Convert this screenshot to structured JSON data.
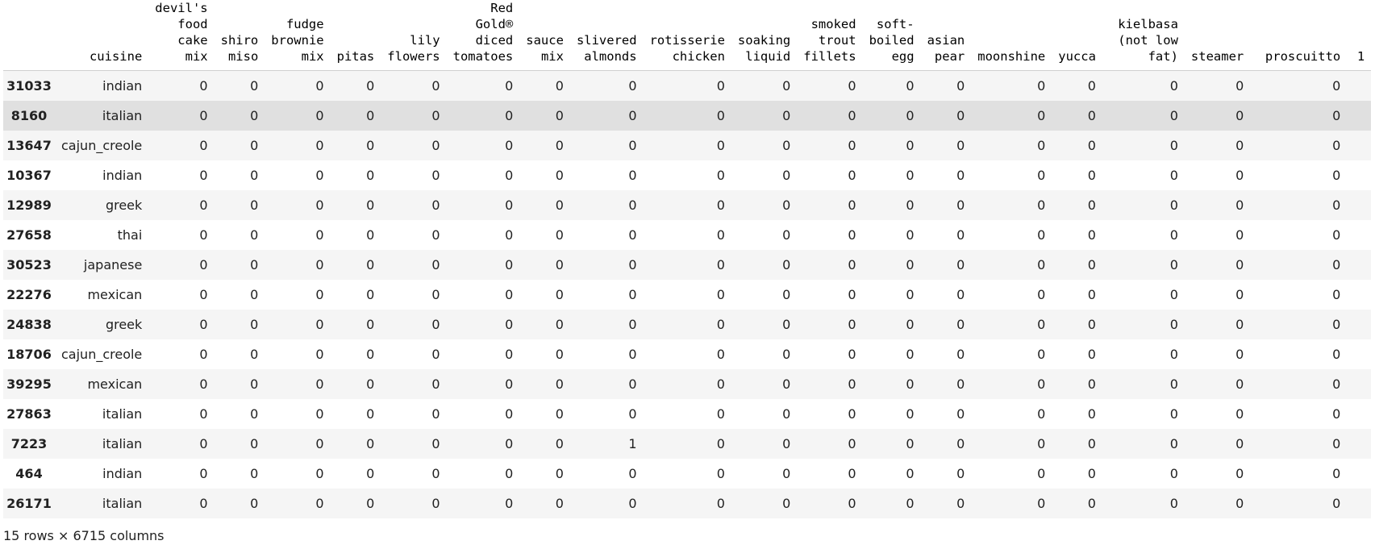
{
  "table": {
    "columns": [
      "cuisine",
      "devil's\nfood\ncake\nmix",
      "shiro\nmiso",
      "fudge\nbrownie\nmix",
      "pitas",
      "lily\nflowers",
      "Red\nGold®\ndiced\ntomatoes",
      "sauce\nmix",
      "slivered\nalmonds",
      "rotisserie\nchicken",
      "soaking\nliquid",
      "smoked\ntrout\nfillets",
      "soft-\nboiled\negg",
      "asian\npear",
      "moonshine",
      "yucca",
      "kielbasa\n(not low\nfat)",
      "steamer",
      "proscuitto",
      "1"
    ],
    "rows": [
      {
        "index": "31033",
        "cells": [
          "indian",
          "0",
          "0",
          "0",
          "0",
          "0",
          "0",
          "0",
          "0",
          "0",
          "0",
          "0",
          "0",
          "0",
          "0",
          "0",
          "0",
          "0",
          "0",
          ""
        ]
      },
      {
        "index": "8160",
        "cells": [
          "italian",
          "0",
          "0",
          "0",
          "0",
          "0",
          "0",
          "0",
          "0",
          "0",
          "0",
          "0",
          "0",
          "0",
          "0",
          "0",
          "0",
          "0",
          "0",
          ""
        ]
      },
      {
        "index": "13647",
        "cells": [
          "cajun_creole",
          "0",
          "0",
          "0",
          "0",
          "0",
          "0",
          "0",
          "0",
          "0",
          "0",
          "0",
          "0",
          "0",
          "0",
          "0",
          "0",
          "0",
          "0",
          ""
        ]
      },
      {
        "index": "10367",
        "cells": [
          "indian",
          "0",
          "0",
          "0",
          "0",
          "0",
          "0",
          "0",
          "0",
          "0",
          "0",
          "0",
          "0",
          "0",
          "0",
          "0",
          "0",
          "0",
          "0",
          ""
        ]
      },
      {
        "index": "12989",
        "cells": [
          "greek",
          "0",
          "0",
          "0",
          "0",
          "0",
          "0",
          "0",
          "0",
          "0",
          "0",
          "0",
          "0",
          "0",
          "0",
          "0",
          "0",
          "0",
          "0",
          ""
        ]
      },
      {
        "index": "27658",
        "cells": [
          "thai",
          "0",
          "0",
          "0",
          "0",
          "0",
          "0",
          "0",
          "0",
          "0",
          "0",
          "0",
          "0",
          "0",
          "0",
          "0",
          "0",
          "0",
          "0",
          ""
        ]
      },
      {
        "index": "30523",
        "cells": [
          "japanese",
          "0",
          "0",
          "0",
          "0",
          "0",
          "0",
          "0",
          "0",
          "0",
          "0",
          "0",
          "0",
          "0",
          "0",
          "0",
          "0",
          "0",
          "0",
          ""
        ]
      },
      {
        "index": "22276",
        "cells": [
          "mexican",
          "0",
          "0",
          "0",
          "0",
          "0",
          "0",
          "0",
          "0",
          "0",
          "0",
          "0",
          "0",
          "0",
          "0",
          "0",
          "0",
          "0",
          "0",
          ""
        ]
      },
      {
        "index": "24838",
        "cells": [
          "greek",
          "0",
          "0",
          "0",
          "0",
          "0",
          "0",
          "0",
          "0",
          "0",
          "0",
          "0",
          "0",
          "0",
          "0",
          "0",
          "0",
          "0",
          "0",
          ""
        ]
      },
      {
        "index": "18706",
        "cells": [
          "cajun_creole",
          "0",
          "0",
          "0",
          "0",
          "0",
          "0",
          "0",
          "0",
          "0",
          "0",
          "0",
          "0",
          "0",
          "0",
          "0",
          "0",
          "0",
          "0",
          ""
        ]
      },
      {
        "index": "39295",
        "cells": [
          "mexican",
          "0",
          "0",
          "0",
          "0",
          "0",
          "0",
          "0",
          "0",
          "0",
          "0",
          "0",
          "0",
          "0",
          "0",
          "0",
          "0",
          "0",
          "0",
          ""
        ]
      },
      {
        "index": "27863",
        "cells": [
          "italian",
          "0",
          "0",
          "0",
          "0",
          "0",
          "0",
          "0",
          "0",
          "0",
          "0",
          "0",
          "0",
          "0",
          "0",
          "0",
          "0",
          "0",
          "0",
          ""
        ]
      },
      {
        "index": "7223",
        "cells": [
          "italian",
          "0",
          "0",
          "0",
          "0",
          "0",
          "0",
          "0",
          "1",
          "0",
          "0",
          "0",
          "0",
          "0",
          "0",
          "0",
          "0",
          "0",
          "0",
          ""
        ]
      },
      {
        "index": "464",
        "cells": [
          "indian",
          "0",
          "0",
          "0",
          "0",
          "0",
          "0",
          "0",
          "0",
          "0",
          "0",
          "0",
          "0",
          "0",
          "0",
          "0",
          "0",
          "0",
          "0",
          ""
        ]
      },
      {
        "index": "26171",
        "cells": [
          "italian",
          "0",
          "0",
          "0",
          "0",
          "0",
          "0",
          "0",
          "0",
          "0",
          "0",
          "0",
          "0",
          "0",
          "0",
          "0",
          "0",
          "0",
          "0",
          ""
        ]
      }
    ],
    "highlighted_row": 1
  },
  "footer": {
    "shape": "15 rows × 6715 columns"
  },
  "colors": {
    "stripe": "#f5f5f5",
    "hover": "#e0e0e0",
    "text": "#212121"
  }
}
